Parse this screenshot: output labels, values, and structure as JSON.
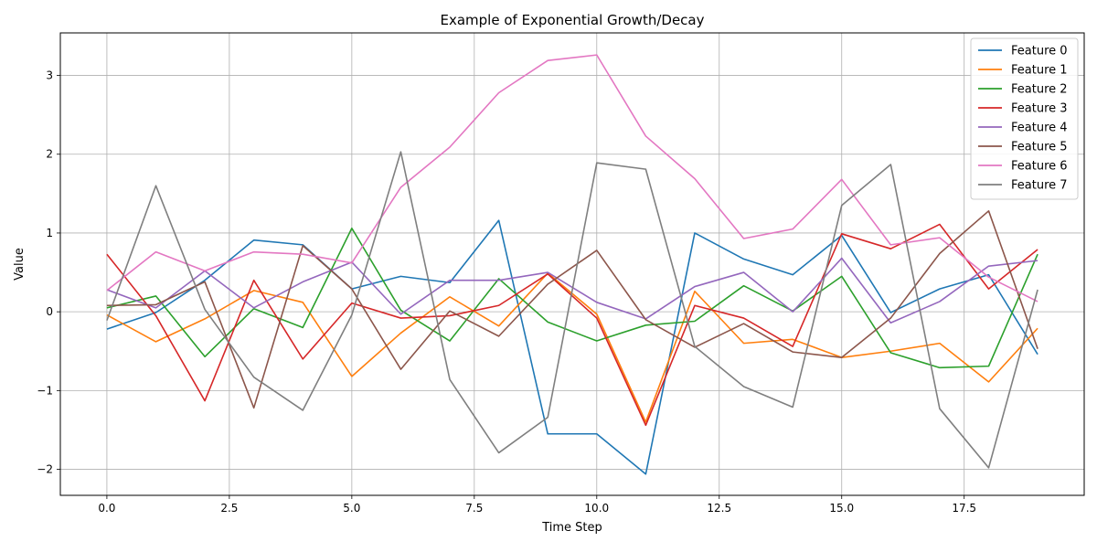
{
  "chart_data": {
    "type": "line",
    "title": "Example of Exponential Growth/Decay",
    "xlabel": "Time Step",
    "ylabel": "Value",
    "xlim": [
      -0.95,
      19.95
    ],
    "ylim": [
      -2.33,
      3.54
    ],
    "xticks": [
      0.0,
      2.5,
      5.0,
      7.5,
      10.0,
      12.5,
      15.0,
      17.5
    ],
    "xtick_labels": [
      "0.0",
      "2.5",
      "5.0",
      "7.5",
      "10.0",
      "12.5",
      "15.0",
      "17.5"
    ],
    "yticks": [
      -2,
      -1,
      0,
      1,
      2,
      3
    ],
    "ytick_labels": [
      "−2",
      "−1",
      "0",
      "1",
      "2",
      "3"
    ],
    "grid": true,
    "legend_position": "top-right",
    "x": [
      0,
      1,
      2,
      3,
      4,
      5,
      6,
      7,
      8,
      9,
      10,
      11,
      12,
      13,
      14,
      15,
      16,
      17,
      18,
      19
    ],
    "series": [
      {
        "name": "Feature 0",
        "color": "#1f77b4",
        "values": [
          -0.22,
          -0.01,
          0.4,
          0.91,
          0.85,
          0.29,
          0.45,
          0.37,
          1.16,
          -1.55,
          -1.55,
          -2.06,
          1.0,
          0.67,
          0.47,
          0.97,
          -0.01,
          0.29,
          0.47,
          -0.54
        ]
      },
      {
        "name": "Feature 1",
        "color": "#ff7f0e",
        "values": [
          -0.04,
          -0.38,
          -0.09,
          0.27,
          0.12,
          -0.82,
          -0.27,
          0.19,
          -0.18,
          0.49,
          -0.03,
          -1.4,
          0.26,
          -0.4,
          -0.35,
          -0.58,
          -0.5,
          -0.4,
          -0.89,
          -0.21
        ]
      },
      {
        "name": "Feature 2",
        "color": "#2ca02c",
        "values": [
          0.05,
          0.2,
          -0.57,
          0.04,
          -0.2,
          1.06,
          0.02,
          -0.37,
          0.42,
          -0.13,
          -0.37,
          -0.17,
          -0.12,
          0.33,
          0.01,
          0.45,
          -0.52,
          -0.71,
          -0.69,
          0.73
        ]
      },
      {
        "name": "Feature 3",
        "color": "#d62728",
        "values": [
          0.73,
          -0.05,
          -1.13,
          0.4,
          -0.6,
          0.11,
          -0.08,
          -0.05,
          0.08,
          0.48,
          -0.08,
          -1.44,
          0.08,
          -0.08,
          -0.44,
          0.99,
          0.8,
          1.11,
          0.29,
          0.79
        ]
      },
      {
        "name": "Feature 4",
        "color": "#9467bd",
        "values": [
          0.28,
          0.05,
          0.52,
          0.05,
          0.38,
          0.63,
          -0.03,
          0.4,
          0.4,
          0.5,
          0.12,
          -0.09,
          0.32,
          0.5,
          0.0,
          0.68,
          -0.14,
          0.13,
          0.58,
          0.65
        ]
      },
      {
        "name": "Feature 5",
        "color": "#8c564b",
        "values": [
          0.08,
          0.09,
          0.38,
          -1.22,
          0.84,
          0.29,
          -0.73,
          0.01,
          -0.31,
          0.35,
          0.78,
          -0.1,
          -0.45,
          -0.15,
          -0.51,
          -0.58,
          -0.08,
          0.74,
          1.28,
          -0.47
        ]
      },
      {
        "name": "Feature 6",
        "color": "#e377c2",
        "values": [
          0.27,
          0.76,
          0.52,
          0.76,
          0.73,
          0.62,
          1.58,
          2.09,
          2.78,
          3.19,
          3.26,
          2.23,
          1.69,
          0.93,
          1.05,
          1.68,
          0.85,
          0.94,
          0.44,
          0.13
        ]
      },
      {
        "name": "Feature 7",
        "color": "#7f7f7f",
        "values": [
          -0.11,
          1.6,
          0.03,
          -0.83,
          -1.25,
          -0.04,
          2.03,
          -0.86,
          -1.79,
          -1.34,
          1.89,
          1.81,
          -0.44,
          -0.95,
          -1.21,
          1.35,
          1.87,
          -1.23,
          -1.98,
          0.28
        ]
      }
    ]
  }
}
